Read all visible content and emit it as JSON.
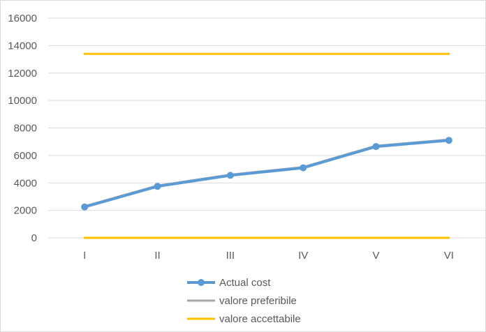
{
  "chart_data": {
    "type": "line",
    "categories": [
      "I",
      "II",
      "III",
      "IV",
      "V",
      "VI"
    ],
    "ylim": [
      0,
      16000
    ],
    "yticks": [
      0,
      2000,
      4000,
      6000,
      8000,
      10000,
      12000,
      14000,
      16000
    ],
    "grid": true,
    "legend_position": "bottom",
    "series": [
      {
        "name": "Actual cost",
        "values": [
          2250,
          3750,
          4550,
          5100,
          6650,
          7100
        ],
        "color": "#5b9bd5",
        "markers": true
      },
      {
        "name": "valore preferibile",
        "values": [
          2300,
          3800,
          4600,
          5150,
          6700,
          7150
        ],
        "color": "#a5a5a5",
        "markers": false
      },
      {
        "name": "valore accettabile",
        "values": [
          13400,
          13400,
          13400,
          13400,
          13400,
          13400
        ],
        "color": "#ffc000",
        "markers": false
      },
      {
        "name": "",
        "values": [
          0,
          0,
          0,
          0,
          0,
          0
        ],
        "color": "#ffc000",
        "markers": false
      }
    ]
  }
}
